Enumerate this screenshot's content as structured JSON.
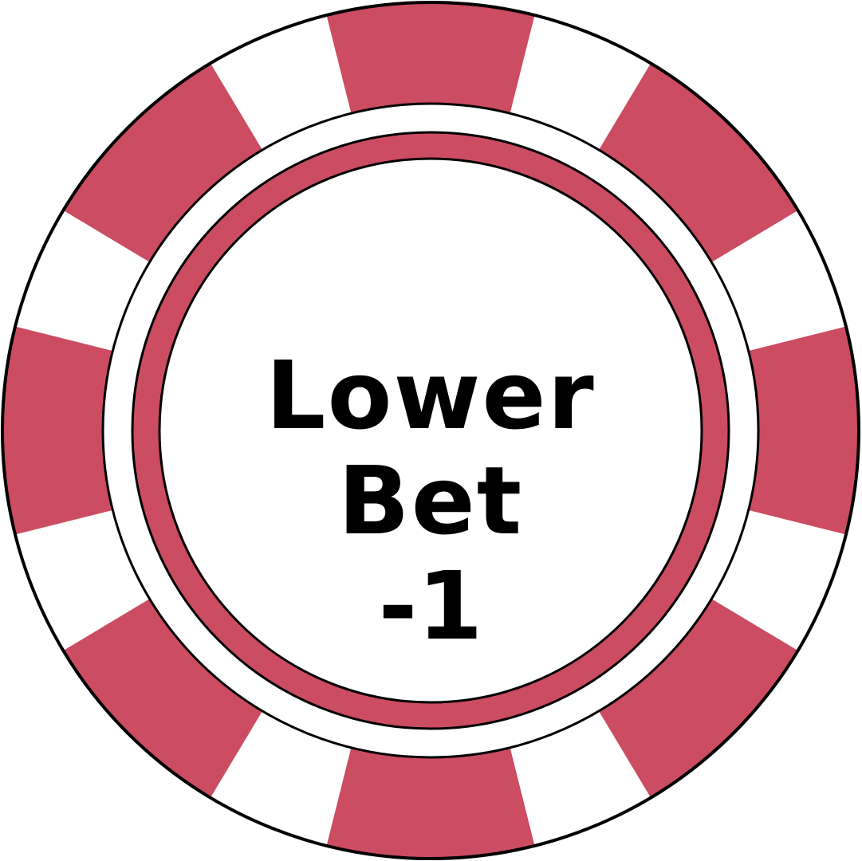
{
  "chip": {
    "label": "Lower Bet",
    "amount": "-1",
    "colors": {
      "accent": "#cc4c62",
      "base": "#ffffff",
      "outline": "#000000"
    }
  }
}
